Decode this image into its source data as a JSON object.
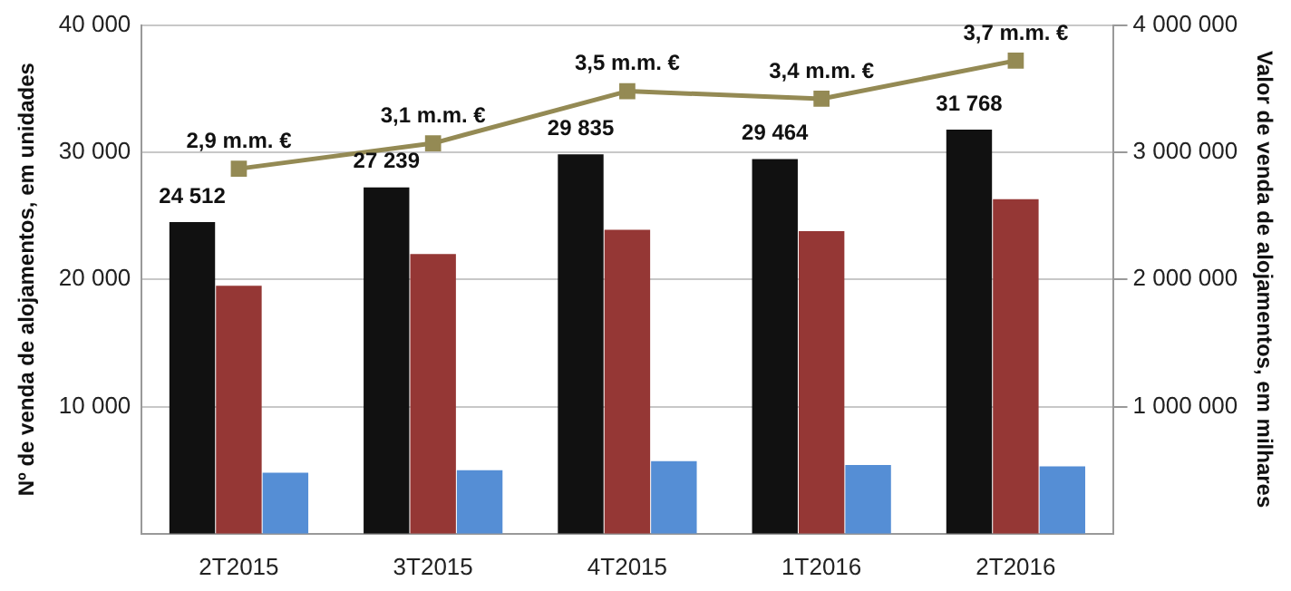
{
  "chart_data": {
    "type": "bar",
    "categories": [
      "2T2015",
      "3T2015",
      "4T2015",
      "1T2016",
      "2T2016"
    ],
    "ylabel": "Nº de venda de alojamentos, em unidades",
    "y2label": "Valor de venda de alojamentos, em milhares",
    "series": [
      {
        "color": "#111111",
        "values": [
          24512,
          27239,
          29835,
          29464,
          31768
        ],
        "value_labels": [
          "24 512",
          "27 239",
          "29 835",
          "29 464",
          "31 768"
        ]
      },
      {
        "color": "#953735",
        "values": [
          19500,
          22000,
          23900,
          23800,
          26300
        ]
      },
      {
        "color": "#558ed5",
        "values": [
          4800,
          5000,
          5700,
          5400,
          5300
        ]
      },
      {
        "type": "line",
        "axis": "y2",
        "color": "#948a54",
        "values": [
          2870000,
          3070000,
          3480000,
          3420000,
          3720000
        ],
        "value_labels": [
          "2,9 m.m. €",
          "3,1 m.m. €",
          "3,5 m.m. €",
          "3,4 m.m. €",
          "3,7 m.m. €"
        ]
      }
    ],
    "ylim": [
      0,
      40000
    ],
    "yticks": [
      {
        "value": 10000,
        "label": "10 000"
      },
      {
        "value": 20000,
        "label": "20 000"
      },
      {
        "value": 30000,
        "label": "30 000"
      },
      {
        "value": 40000,
        "label": "40 000"
      }
    ],
    "y2lim": [
      0,
      4000000
    ],
    "y2ticks": [
      {
        "value": 1000000,
        "label": "1 000 000"
      },
      {
        "value": 2000000,
        "label": "2 000 000"
      },
      {
        "value": 3000000,
        "label": "3 000 000"
      },
      {
        "value": 4000000,
        "label": "4 000 000"
      }
    ],
    "grid": "y",
    "legend": false,
    "marker": "square"
  }
}
